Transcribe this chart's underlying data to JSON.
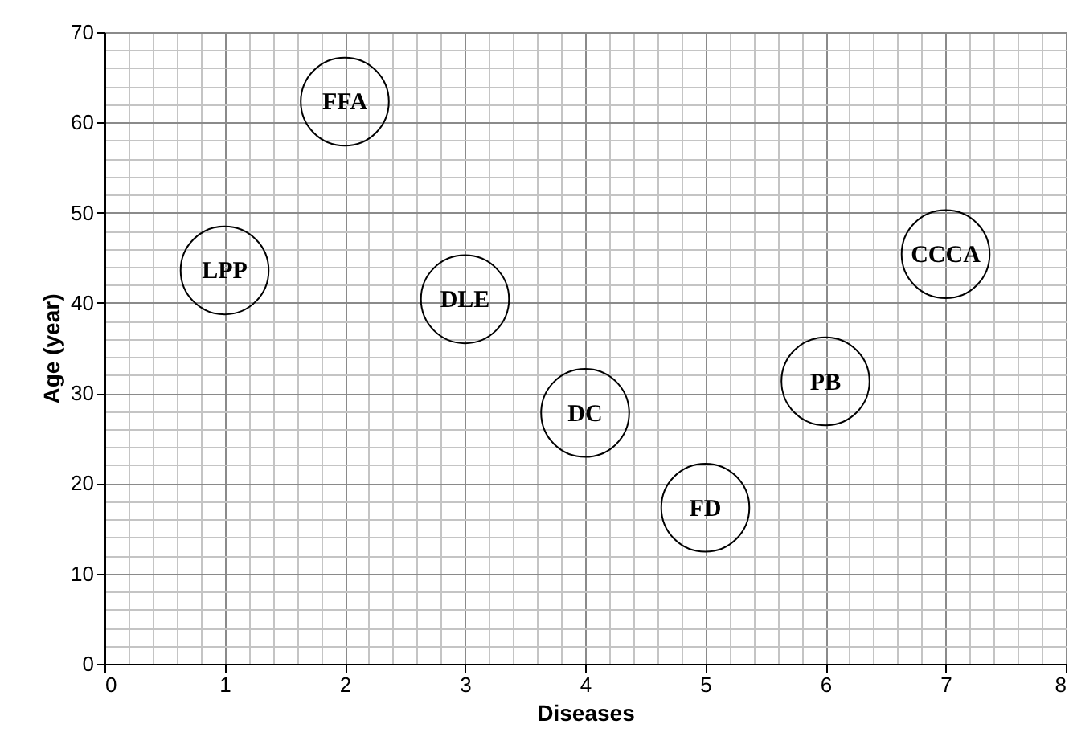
{
  "chart_data": {
    "type": "scatter",
    "xlabel": "Diseases",
    "ylabel": "Age (year)",
    "x": [
      1,
      2,
      3,
      4,
      5,
      6,
      7
    ],
    "series": [
      {
        "color": "#000000",
        "values": [
          43.6,
          62.3,
          40.4,
          27.8,
          17.3,
          31.3,
          45.4
        ]
      }
    ],
    "xlim": [
      0,
      8
    ],
    "xticks": [
      0,
      1,
      2,
      3,
      4,
      5,
      6,
      7,
      8
    ],
    "ylim": [
      0,
      70
    ],
    "yticks": [
      0,
      10,
      20,
      30,
      40,
      50,
      60,
      70
    ],
    "grid": true,
    "marker": "circle",
    "annotations": [
      {
        "text": "LPP",
        "x": 1,
        "y": 43.6
      },
      {
        "text": "FFA",
        "x": 2,
        "y": 62.3
      },
      {
        "text": "DLE",
        "x": 3,
        "y": 40.4
      },
      {
        "text": "DC",
        "x": 4,
        "y": 27.8
      },
      {
        "text": "FD",
        "x": 5,
        "y": 17.3
      },
      {
        "text": "PB",
        "x": 6,
        "y": 31.3
      },
      {
        "text": "CCCA",
        "x": 7,
        "y": 45.4
      }
    ]
  }
}
